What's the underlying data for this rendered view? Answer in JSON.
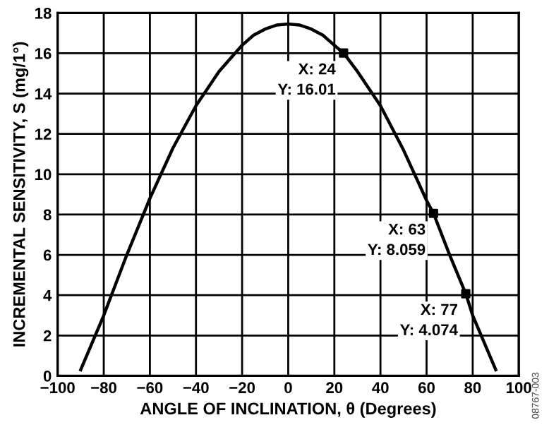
{
  "chart_data": {
    "type": "line",
    "xlabel": "ANGLE OF INCLINATION, θ (Degrees)",
    "ylabel": "INCREMENTAL SENSITIVITY, S (mg/1°)",
    "series": [
      {
        "color": "#000000",
        "marker": "none",
        "x": [
          -90,
          -80,
          -70,
          -60,
          -50,
          -40,
          -30,
          -20,
          -15,
          -10,
          -5,
          0,
          5,
          10,
          15,
          20,
          24,
          30,
          40,
          50,
          60,
          63,
          70,
          77,
          80,
          90
        ],
        "values": [
          0.3,
          3.0,
          6.0,
          8.8,
          11.3,
          13.4,
          15.1,
          16.4,
          16.9,
          17.2,
          17.4,
          17.45,
          17.4,
          17.2,
          16.9,
          16.4,
          16.01,
          15.1,
          13.4,
          11.2,
          8.7,
          8.059,
          6.0,
          4.074,
          3.0,
          0.3
        ]
      },
      {
        "type": "scatter",
        "color": "#000000",
        "marker": "square",
        "x": [
          24,
          63,
          77
        ],
        "values": [
          16.01,
          8.059,
          4.074
        ]
      }
    ],
    "xlim": [
      -100,
      100
    ],
    "xticks": [
      -100,
      -80,
      -60,
      -40,
      -20,
      0,
      20,
      40,
      60,
      80,
      100
    ],
    "ylim": [
      0,
      18
    ],
    "yticks": [
      0,
      2,
      4,
      6,
      8,
      10,
      12,
      14,
      16,
      18
    ],
    "grid": true,
    "annotations": [
      {
        "text": "X: 24\nY: 16.01",
        "x": 24,
        "y": 16.01
      },
      {
        "text": "X: 63\nY: 8.059",
        "x": 63,
        "y": 8.059
      },
      {
        "text": "X: 77\nY: 4.074",
        "x": 77,
        "y": 4.074
      },
      "08767-003"
    ]
  }
}
